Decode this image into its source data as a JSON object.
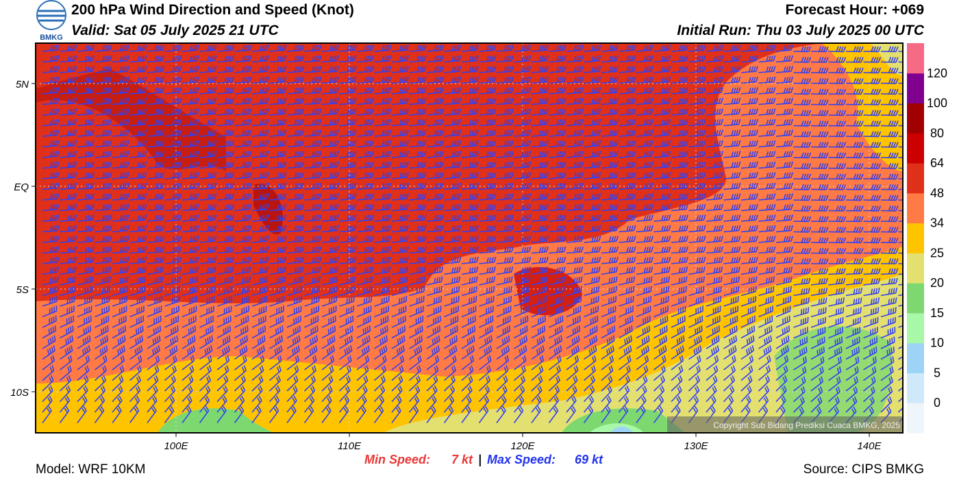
{
  "header": {
    "title": "200 hPa Wind Direction and Speed (Knot)",
    "valid": "Valid: Sat 05 July 2025 21 UTC",
    "forecast_hour": "Forecast Hour: +069",
    "initial_run": "Initial Run: Thu 03 July 2025 00 UTC",
    "logo": "BMKG"
  },
  "map": {
    "lat_labels": [
      "5N",
      "EQ",
      "5S",
      "10S"
    ],
    "lon_labels": [
      "100E",
      "110E",
      "120E",
      "130E",
      "140E"
    ],
    "copyright": "Copyright Sub Bidang Prediksi Cuaca BMKG, 2025"
  },
  "colorbar": {
    "levels": [
      "0",
      "5",
      "10",
      "15",
      "20",
      "25",
      "34",
      "48",
      "64",
      "80",
      "100",
      "120"
    ],
    "colors": [
      "#eef6fc",
      "#cfe9fa",
      "#9dd4f6",
      "#a8f8a8",
      "#7ed870",
      "#e4e070",
      "#ffc400",
      "#ff7a45",
      "#e0301a",
      "#cc0000",
      "#a00000",
      "#800090",
      "#f76a86"
    ]
  },
  "footer": {
    "model": "Model: WRF 10KM",
    "min_label": "Min Speed:",
    "min_value": "7 kt",
    "separator": "|",
    "max_label": "Max Speed:",
    "max_value": "69 kt",
    "source": "Source: CIPS BMKG"
  }
}
